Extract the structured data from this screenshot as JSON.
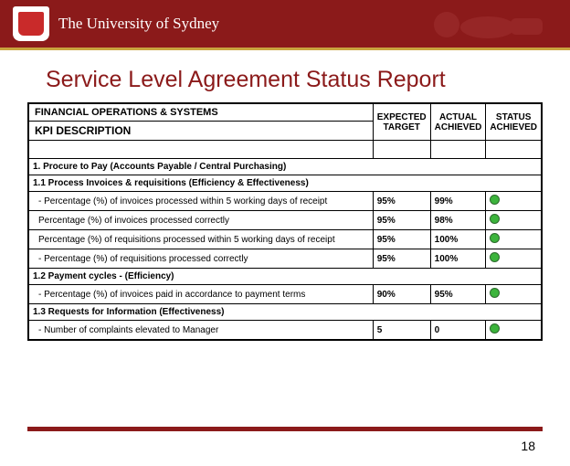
{
  "header": {
    "university_name": "The University of Sydney"
  },
  "page_title": "Service Level Agreement Status Report",
  "table": {
    "header1_left": "FINANCIAL OPERATIONS & SYSTEMS",
    "header2_left": "KPI DESCRIPTION",
    "col_expected": "EXPECTED TARGET",
    "col_actual": "ACTUAL ACHIEVED",
    "col_status": "STATUS ACHIEVED",
    "status_dot_color": "#3cb43c",
    "sections": [
      {
        "title": "1. Procure to Pay (Accounts Payable / Central Purchasing)",
        "groups": [
          {
            "title": "1.1 Process Invoices & requisitions (Efficiency & Effectiveness)",
            "metrics": [
              {
                "label": "- Percentage (%) of invoices processed within 5 working days of receipt",
                "expected": "95%",
                "actual": "99%",
                "status": "green"
              },
              {
                "label": "Percentage (%)  of invoices processed correctly",
                "expected": "95%",
                "actual": "98%",
                "status": "green"
              },
              {
                "label": "Percentage (%)  of requisitions processed within 5 working days of receipt",
                "expected": "95%",
                "actual": "100%",
                "status": "green"
              },
              {
                "label": "- Percentage (%) of requisitions processed correctly",
                "expected": "95%",
                "actual": "100%",
                "status": "green"
              }
            ]
          },
          {
            "title": "1.2 Payment cycles - (Efficiency)",
            "metrics": [
              {
                "label": "- Percentage (%) of invoices paid in accordance to payment terms",
                "expected": "90%",
                "actual": "95%",
                "status": "green"
              }
            ]
          },
          {
            "title": "1.3 Requests for Information (Effectiveness)",
            "metrics": [
              {
                "label": "- Number of complaints elevated to Manager",
                "expected": "5",
                "actual": "0",
                "status": "green"
              }
            ]
          }
        ]
      }
    ]
  },
  "page_number": "18"
}
